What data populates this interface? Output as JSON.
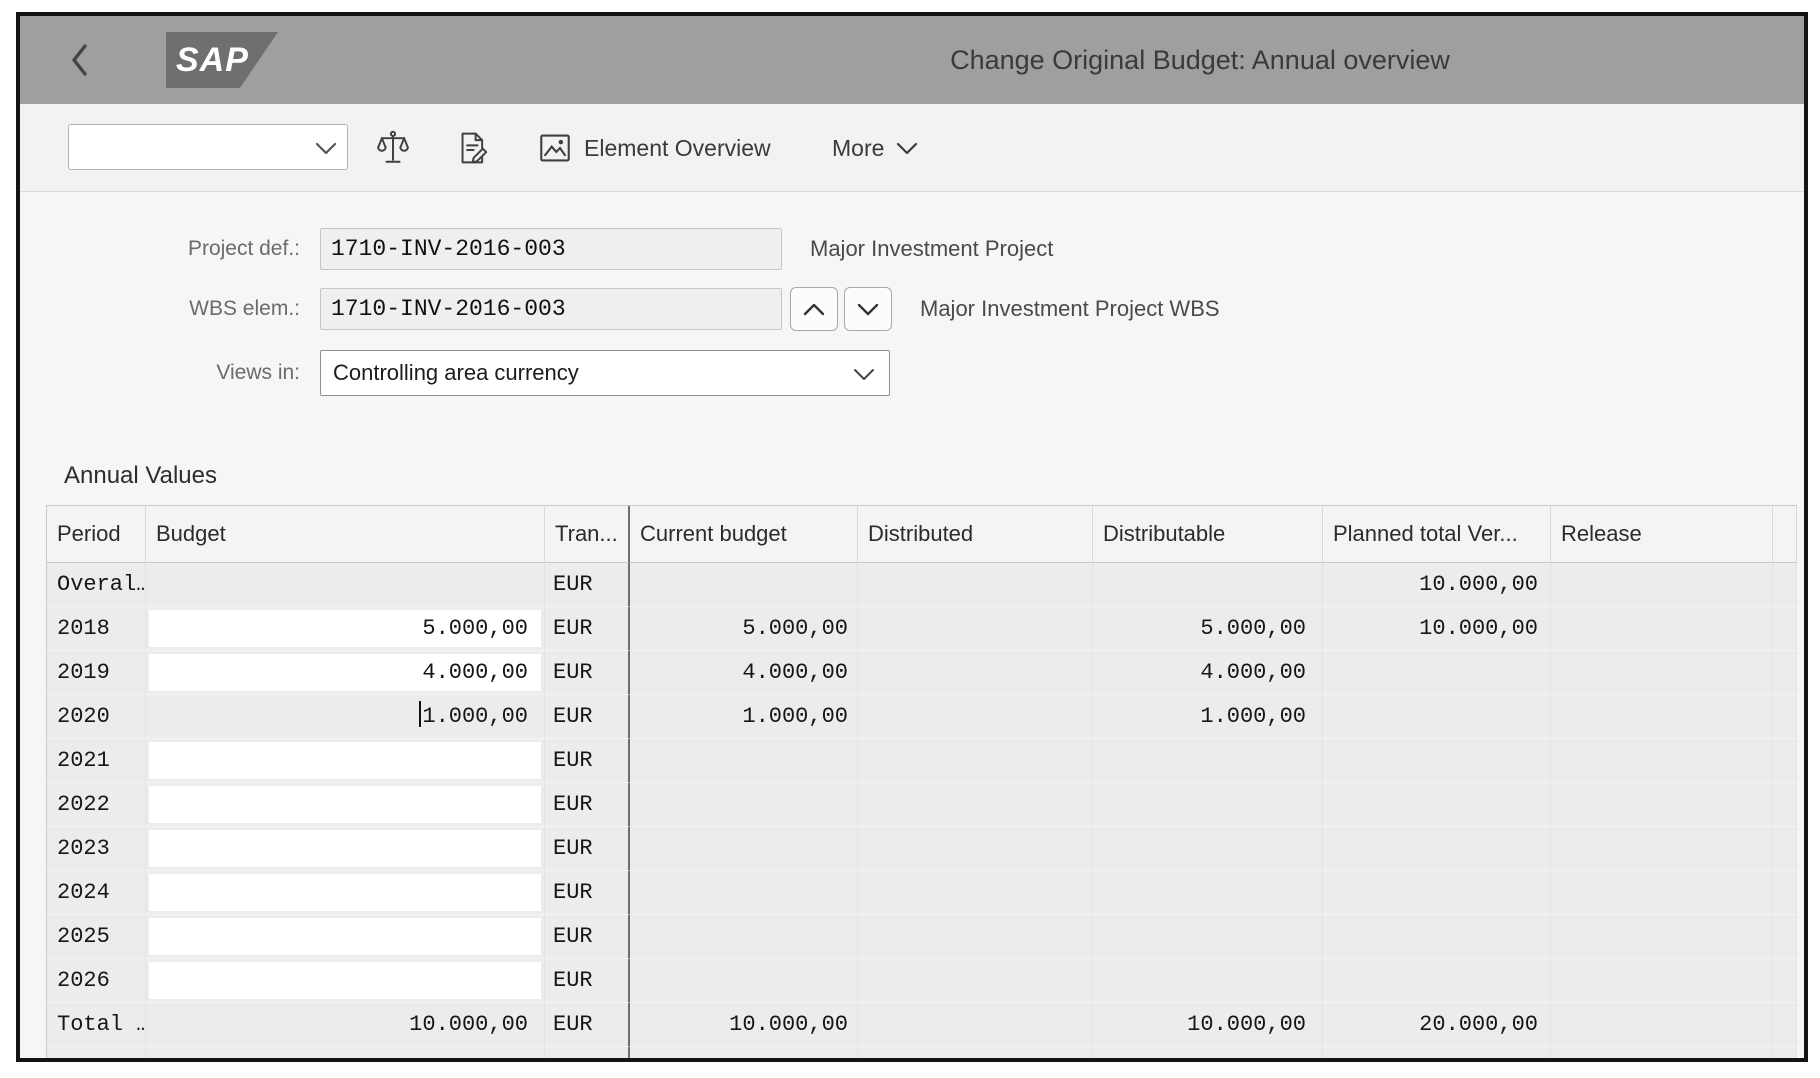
{
  "header": {
    "logo_text": "SAP",
    "title": "Change Original Budget: Annual overview"
  },
  "toolbar": {
    "command_value": "",
    "check_tooltip": "Check",
    "change_tooltip": "Change",
    "element_overview_label": "Element Overview",
    "more_label": "More"
  },
  "form": {
    "project": {
      "label": "Project def.:",
      "value": "1710-INV-2016-003",
      "description": "Major Investment Project"
    },
    "wbs": {
      "label": "WBS elem.:",
      "value": "1710-INV-2016-003",
      "description": "Major Investment Project WBS"
    },
    "views": {
      "label": "Views in:",
      "value": "Controlling area currency"
    }
  },
  "section_title": "Annual Values",
  "table": {
    "columns": [
      "Period",
      "Budget",
      "Tran...",
      "Current budget",
      "Distributed",
      "Distributable",
      "Planned total Ver...",
      "Release"
    ],
    "rows": [
      {
        "period": "Overal…",
        "budget": "",
        "currency": "EUR",
        "current_budget": "",
        "distributed": "",
        "distributable": "",
        "planned_total": "10.000,00",
        "release": "",
        "editable": false,
        "selected": false,
        "caret": false
      },
      {
        "period": "2018",
        "budget": "5.000,00",
        "currency": "EUR",
        "current_budget": "5.000,00",
        "distributed": "",
        "distributable": "5.000,00",
        "planned_total": "10.000,00",
        "release": "",
        "editable": true,
        "selected": false,
        "caret": false
      },
      {
        "period": "2019",
        "budget": "4.000,00",
        "currency": "EUR",
        "current_budget": "4.000,00",
        "distributed": "",
        "distributable": "4.000,00",
        "planned_total": "",
        "release": "",
        "editable": true,
        "selected": false,
        "caret": false
      },
      {
        "period": "2020",
        "budget": "1.000,00",
        "currency": "EUR",
        "current_budget": "1.000,00",
        "distributed": "",
        "distributable": "1.000,00",
        "planned_total": "",
        "release": "",
        "editable": true,
        "selected": true,
        "caret": true
      },
      {
        "period": "2021",
        "budget": "",
        "currency": "EUR",
        "current_budget": "",
        "distributed": "",
        "distributable": "",
        "planned_total": "",
        "release": "",
        "editable": true,
        "selected": false,
        "caret": false
      },
      {
        "period": "2022",
        "budget": "",
        "currency": "EUR",
        "current_budget": "",
        "distributed": "",
        "distributable": "",
        "planned_total": "",
        "release": "",
        "editable": true,
        "selected": false,
        "caret": false
      },
      {
        "period": "2023",
        "budget": "",
        "currency": "EUR",
        "current_budget": "",
        "distributed": "",
        "distributable": "",
        "planned_total": "",
        "release": "",
        "editable": true,
        "selected": false,
        "caret": false
      },
      {
        "period": "2024",
        "budget": "",
        "currency": "EUR",
        "current_budget": "",
        "distributed": "",
        "distributable": "",
        "planned_total": "",
        "release": "",
        "editable": true,
        "selected": false,
        "caret": false
      },
      {
        "period": "2025",
        "budget": "",
        "currency": "EUR",
        "current_budget": "",
        "distributed": "",
        "distributable": "",
        "planned_total": "",
        "release": "",
        "editable": true,
        "selected": false,
        "caret": false
      },
      {
        "period": "2026",
        "budget": "",
        "currency": "EUR",
        "current_budget": "",
        "distributed": "",
        "distributable": "",
        "planned_total": "",
        "release": "",
        "editable": true,
        "selected": false,
        "caret": false
      },
      {
        "period": "Total …",
        "budget": "10.000,00",
        "currency": "EUR",
        "current_budget": "10.000,00",
        "distributed": "",
        "distributable": "10.000,00",
        "planned_total": "20.000,00",
        "release": "",
        "editable": false,
        "selected": false,
        "caret": false
      },
      {
        "period": "",
        "budget": "",
        "currency": "",
        "current_budget": "",
        "distributed": "",
        "distributable": "",
        "planned_total": "",
        "release": "",
        "editable": false,
        "selected": false,
        "caret": false
      }
    ]
  },
  "colors": {
    "titlebar_gray": "#9f9f9f",
    "logo_gray": "#6f6f6f",
    "table_divider_dark": "#6e6e6e"
  }
}
